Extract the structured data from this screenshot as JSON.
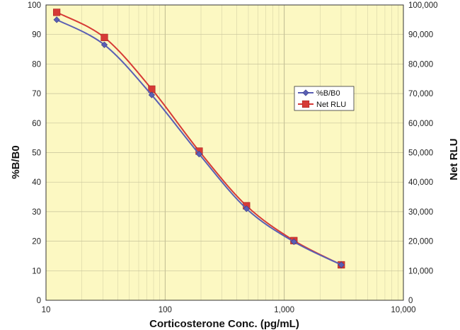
{
  "chart_data": {
    "type": "line",
    "title": "",
    "xlabel": "Corticosterone Conc. (pg/mL)",
    "ylabel": "%B/B0",
    "y2label": "Net RLU",
    "x_scale": "log",
    "xlim": [
      10,
      10000
    ],
    "ylim": [
      0,
      100
    ],
    "y2lim": [
      0,
      100000
    ],
    "x_ticks": [
      10,
      100,
      1000,
      10000
    ],
    "x_tick_labels": [
      "10",
      "100",
      "1,000",
      "10,000"
    ],
    "y_ticks": [
      0,
      10,
      20,
      30,
      40,
      50,
      60,
      70,
      80,
      90,
      100
    ],
    "y_tick_labels": [
      "0",
      "10",
      "20",
      "30",
      "40",
      "50",
      "60",
      "70",
      "80",
      "90",
      "100"
    ],
    "y2_ticks": [
      0,
      10000,
      20000,
      30000,
      40000,
      50000,
      60000,
      70000,
      80000,
      90000,
      100000
    ],
    "y2_tick_labels": [
      "0",
      "10,000",
      "20,000",
      "30,000",
      "40,000",
      "50,000",
      "60,000",
      "70,000",
      "80,000",
      "90,000",
      "100,000"
    ],
    "grid": true,
    "legend_position": "right",
    "plot_background": "#fcf8c2",
    "series": [
      {
        "name": "%B/B0",
        "axis": "left",
        "marker": "diamond",
        "color": "#5a5fb4",
        "x": [
          12.3,
          30.9,
          77.2,
          193,
          482,
          1205,
          3012
        ],
        "y": [
          95,
          86.5,
          69.5,
          49.5,
          31,
          19.8,
          12
        ]
      },
      {
        "name": "Net RLU",
        "axis": "right",
        "marker": "square",
        "color": "#d63a36",
        "x": [
          12.3,
          30.9,
          77.2,
          193,
          482,
          1205,
          3012
        ],
        "y": [
          97500,
          89000,
          71500,
          50500,
          32000,
          20200,
          12000
        ]
      }
    ]
  }
}
